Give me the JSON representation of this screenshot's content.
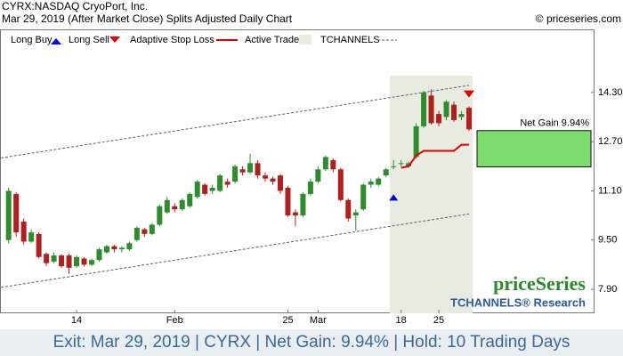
{
  "chart_data": {
    "type": "candlestick",
    "title": "CYRX:NASDAQ CryoPort, Inc.",
    "subtitle": "Mar 29, 2019 (After Market Close)  Splits Adjusted Daily Chart",
    "copyright": "© priceseries.com",
    "legend": [
      "Long Buy",
      "Long Sell",
      "Adaptive Stop Loss",
      "Active Trade",
      "TCHANNELS"
    ],
    "watermark": "priceSeries",
    "watermark2": "TCHANNELS® Research",
    "footer": "Exit: Mar 29, 2019 | CYRX | Net Gain: 9.94% | Hold: 10 Trading Days",
    "net_gain_label": "Net Gain 9.94%",
    "categories": [
      null,
      null,
      null,
      null,
      null,
      null,
      null,
      null,
      null,
      "14",
      null,
      null,
      null,
      null,
      null,
      null,
      null,
      null,
      null,
      null,
      null,
      null,
      "Feb",
      null,
      null,
      null,
      null,
      null,
      null,
      null,
      null,
      null,
      null,
      null,
      null,
      null,
      null,
      "25",
      null,
      null,
      null,
      "Mar",
      null,
      null,
      null,
      null,
      null,
      null,
      null,
      null,
      null,
      null,
      "18",
      null,
      null,
      null,
      null,
      "25",
      null,
      null,
      null,
      null
    ],
    "open": [
      9.5,
      11.0,
      10.1,
      9.45,
      9.7,
      9.05,
      8.8,
      9.0,
      9.0,
      8.65,
      8.9,
      8.7,
      8.85,
      9.1,
      9.3,
      9.2,
      9.2,
      9.5,
      9.85,
      9.7,
      10.0,
      10.4,
      10.6,
      10.5,
      10.6,
      10.9,
      11.3,
      11.1,
      11.1,
      11.4,
      11.4,
      11.8,
      11.7,
      12.0,
      11.6,
      11.5,
      11.6,
      11.2,
      10.4,
      10.3,
      11.0,
      11.4,
      11.8,
      12.1,
      11.8,
      10.8,
      10.3,
      10.5,
      11.3,
      11.3,
      11.6,
      11.9,
      12.0,
      11.9,
      12.2,
      13.2,
      14.2,
      13.6,
      13.5,
      13.9,
      13.5,
      13.8
    ],
    "high": [
      11.2,
      11.05,
      10.2,
      9.85,
      9.75,
      9.1,
      9.1,
      9.05,
      9.05,
      9.0,
      8.95,
      8.9,
      9.25,
      9.35,
      9.35,
      9.3,
      9.45,
      9.95,
      9.9,
      10.05,
      10.65,
      10.9,
      10.7,
      10.85,
      11.05,
      11.45,
      11.35,
      11.3,
      11.65,
      11.5,
      11.95,
      11.9,
      12.3,
      12.1,
      11.7,
      11.55,
      11.65,
      11.25,
      10.5,
      11.05,
      11.5,
      11.9,
      12.25,
      12.15,
      11.85,
      10.85,
      10.5,
      11.35,
      11.5,
      11.55,
      11.85,
      12.1,
      12.1,
      12.05,
      13.3,
      14.35,
      14.4,
      13.7,
      14.05,
      14.0,
      13.7,
      13.85
    ],
    "low": [
      9.4,
      9.6,
      9.35,
      9.4,
      8.9,
      8.65,
      8.75,
      8.6,
      8.4,
      8.6,
      8.65,
      8.65,
      8.8,
      9.05,
      9.1,
      9.1,
      9.15,
      9.45,
      9.6,
      9.65,
      9.95,
      10.35,
      10.4,
      10.45,
      10.55,
      10.85,
      10.95,
      11.0,
      11.05,
      11.2,
      11.35,
      11.6,
      11.65,
      11.5,
      11.4,
      11.3,
      11.0,
      10.25,
      9.95,
      10.25,
      10.95,
      11.35,
      11.75,
      11.7,
      10.75,
      10.1,
      9.8,
      10.45,
      11.2,
      11.25,
      11.55,
      11.8,
      11.9,
      11.85,
      12.15,
      13.15,
      13.25,
      13.2,
      13.4,
      13.35,
      13.4,
      13.05
    ],
    "close": [
      11.1,
      9.75,
      9.45,
      9.75,
      8.95,
      8.75,
      9.0,
      8.65,
      8.6,
      8.95,
      8.7,
      8.85,
      9.2,
      9.3,
      9.2,
      9.25,
      9.4,
      9.9,
      9.7,
      10.0,
      10.6,
      10.8,
      10.5,
      10.8,
      11.0,
      11.4,
      11.0,
      11.2,
      11.6,
      11.3,
      11.9,
      11.7,
      12.0,
      11.6,
      11.5,
      11.4,
      11.1,
      10.3,
      10.3,
      11.0,
      11.4,
      11.8,
      12.2,
      11.8,
      10.8,
      10.2,
      10.4,
      11.3,
      11.4,
      11.5,
      11.8,
      11.9,
      12.0,
      12.0,
      13.2,
      14.3,
      13.3,
      13.3,
      14.0,
      13.4,
      13.6,
      13.1
    ],
    "up_color": "#2e8b2e",
    "down_color": "#b0201e",
    "stop_loss": {
      "color": "#e00000",
      "values": [
        null,
        null,
        null,
        null,
        null,
        null,
        null,
        null,
        null,
        null,
        null,
        null,
        null,
        null,
        null,
        null,
        null,
        null,
        null,
        null,
        null,
        null,
        null,
        null,
        null,
        null,
        null,
        null,
        null,
        null,
        null,
        null,
        null,
        null,
        null,
        null,
        null,
        null,
        null,
        null,
        null,
        null,
        null,
        null,
        null,
        null,
        null,
        null,
        null,
        null,
        null,
        null,
        11.85,
        11.9,
        12.25,
        12.4,
        12.4,
        12.4,
        12.4,
        12.4,
        12.6,
        12.6
      ]
    },
    "channels": {
      "x": [
        0,
        61
      ],
      "upper": [
        12.21,
        14.53
      ],
      "lower": [
        8.0,
        10.35
      ],
      "color": "#56607a"
    },
    "active_trade": [
      51,
      61
    ],
    "entry_arrow": {
      "index": 51,
      "value": 10.9,
      "color": "#0000dd"
    },
    "exit_arrow": {
      "index": 61,
      "value": 14.25,
      "color": "#e00000"
    },
    "net_gain_box": [
      11.88,
      13.06
    ],
    "ylim": [
      7.12,
      16.35
    ],
    "yticks": [
      {
        "value": 14.3,
        "label": "14.30"
      },
      {
        "value": 12.7,
        "label": "12.70"
      },
      {
        "value": 11.1,
        "label": "11.10"
      },
      {
        "value": 9.5,
        "label": "9.50"
      },
      {
        "value": 7.9,
        "label": "7.90"
      }
    ]
  }
}
